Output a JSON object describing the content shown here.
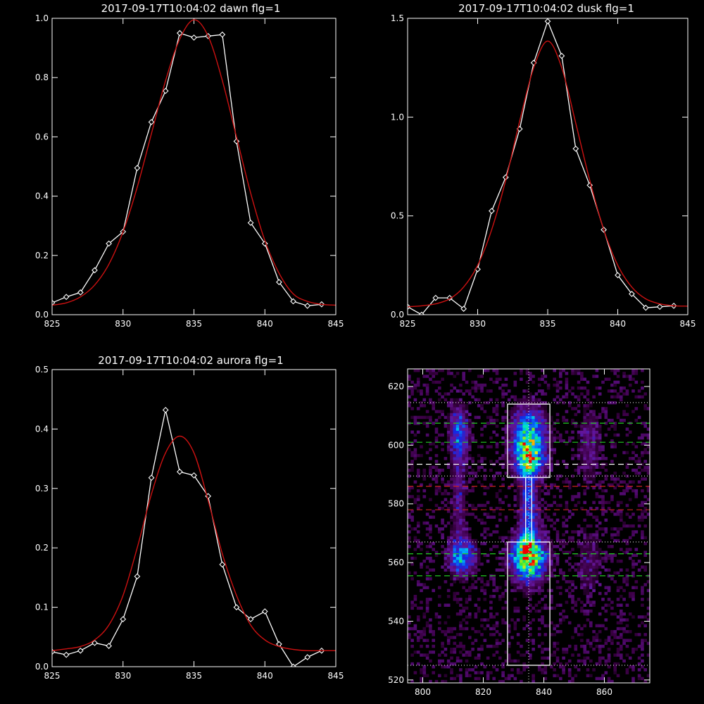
{
  "colors": {
    "background": "#000000",
    "axes": "#ffffff",
    "observed": "#ffffff",
    "fit": "#cc1111",
    "green_lines": "#22cc22",
    "red_lines": "#cc2222"
  },
  "chart_data": [
    {
      "id": "dawn",
      "type": "line",
      "title": "2017-09-17T10:04:02 dawn flg=1",
      "xlim": [
        825,
        845
      ],
      "ylim": [
        0,
        1.0
      ],
      "xticks": [
        825,
        830,
        835,
        840,
        845
      ],
      "yticks": [
        0.0,
        0.2,
        0.4,
        0.6,
        0.8,
        1.0
      ],
      "ytick_labels": [
        "0.0",
        "0.2",
        "0.4",
        "0.6",
        "0.8",
        "1.0"
      ],
      "series": [
        {
          "marker": "diamond",
          "x": [
            825,
            826,
            827,
            828,
            829,
            830,
            831,
            832,
            833,
            834,
            835,
            836,
            837,
            838,
            839,
            840,
            841,
            842,
            843,
            844
          ],
          "values": [
            0.04,
            0.06,
            0.075,
            0.15,
            0.24,
            0.28,
            0.495,
            0.65,
            0.755,
            0.95,
            0.935,
            0.94,
            0.945,
            0.585,
            0.31,
            0.24,
            0.11,
            0.045,
            0.03,
            0.035
          ]
        }
      ],
      "fit": {
        "x": [
          825,
          826,
          827,
          828,
          829,
          830,
          831,
          832,
          833,
          834,
          835,
          836,
          837,
          838,
          839,
          840,
          841,
          842,
          843,
          844,
          845
        ],
        "values": [
          0.032,
          0.04,
          0.06,
          0.1,
          0.17,
          0.28,
          0.43,
          0.61,
          0.79,
          0.93,
          0.995,
          0.94,
          0.79,
          0.6,
          0.41,
          0.25,
          0.14,
          0.07,
          0.045,
          0.035,
          0.032
        ]
      }
    },
    {
      "id": "dusk",
      "type": "line",
      "title": "2017-09-17T10:04:02 dusk flg=1",
      "xlim": [
        825,
        845
      ],
      "ylim": [
        0,
        1.5
      ],
      "xticks": [
        825,
        830,
        835,
        840,
        845
      ],
      "yticks": [
        0.0,
        0.5,
        1.0,
        1.5
      ],
      "ytick_labels": [
        "0.0",
        "0.5",
        "1.0",
        "1.5"
      ],
      "series": [
        {
          "marker": "diamond",
          "x": [
            825,
            826,
            827,
            828,
            829,
            830,
            831,
            832,
            833,
            834,
            835,
            836,
            837,
            838,
            839,
            840,
            841,
            842,
            843,
            844
          ],
          "values": [
            0.04,
            0.0,
            0.085,
            0.085,
            0.03,
            0.23,
            0.525,
            0.695,
            0.94,
            1.275,
            1.485,
            1.31,
            0.84,
            0.655,
            0.43,
            0.2,
            0.105,
            0.035,
            0.04,
            0.045
          ]
        }
      ],
      "fit": {
        "x": [
          825,
          826,
          827,
          828,
          829,
          830,
          831,
          832,
          833,
          834,
          835,
          836,
          837,
          838,
          839,
          840,
          841,
          842,
          843,
          844,
          845
        ],
        "values": [
          0.04,
          0.045,
          0.055,
          0.08,
          0.14,
          0.25,
          0.43,
          0.68,
          0.98,
          1.25,
          1.385,
          1.25,
          0.97,
          0.68,
          0.43,
          0.25,
          0.14,
          0.08,
          0.055,
          0.045,
          0.043
        ]
      }
    },
    {
      "id": "aurora",
      "type": "line",
      "title": "2017-09-17T10:04:02 aurora flg=1",
      "xlim": [
        825,
        845
      ],
      "ylim": [
        0,
        0.5
      ],
      "xticks": [
        825,
        830,
        835,
        840,
        845
      ],
      "yticks": [
        0.0,
        0.1,
        0.2,
        0.3,
        0.4,
        0.5
      ],
      "ytick_labels": [
        "0.0",
        "0.1",
        "0.2",
        "0.3",
        "0.4",
        "0.5"
      ],
      "series": [
        {
          "marker": "diamond",
          "x": [
            825,
            826,
            827,
            828,
            829,
            830,
            831,
            832,
            833,
            834,
            835,
            836,
            837,
            838,
            839,
            840,
            841,
            842,
            843,
            844
          ],
          "values": [
            0.025,
            0.02,
            0.027,
            0.04,
            0.035,
            0.08,
            0.152,
            0.318,
            0.432,
            0.328,
            0.322,
            0.287,
            0.172,
            0.1,
            0.08,
            0.093,
            0.038,
            0.0,
            0.016,
            0.027
          ]
        }
      ],
      "fit": {
        "x": [
          825,
          826,
          827,
          828,
          829,
          830,
          831,
          832,
          833,
          834,
          835,
          836,
          837,
          838,
          839,
          840,
          841,
          842,
          843,
          844,
          845
        ],
        "values": [
          0.027,
          0.03,
          0.034,
          0.045,
          0.07,
          0.12,
          0.2,
          0.29,
          0.36,
          0.388,
          0.36,
          0.28,
          0.19,
          0.12,
          0.07,
          0.045,
          0.034,
          0.029,
          0.027,
          0.027,
          0.027
        ]
      }
    },
    {
      "id": "image",
      "type": "heatmap",
      "title": "",
      "xlim": [
        795,
        875
      ],
      "ylim": [
        519,
        626
      ],
      "xticks": [
        800,
        820,
        840,
        860
      ],
      "yticks": [
        520,
        540,
        560,
        580,
        600,
        620
      ],
      "ytick_labels": [
        "520",
        "540",
        "560",
        "580",
        "600",
        "620"
      ],
      "hotspots": [
        {
          "x": 835,
          "y": 603,
          "sx": 3.5,
          "sy": 6,
          "amp": 0.6
        },
        {
          "x": 835,
          "y": 595,
          "sx": 3.2,
          "sy": 4,
          "amp": 0.5
        },
        {
          "x": 835,
          "y": 562,
          "sx": 3.5,
          "sy": 5,
          "amp": 0.9
        },
        {
          "x": 835,
          "y": 578,
          "sx": 1.8,
          "sy": 12,
          "amp": 0.35
        },
        {
          "x": 813,
          "y": 562,
          "sx": 2.8,
          "sy": 4,
          "amp": 0.45
        },
        {
          "x": 812,
          "y": 604,
          "sx": 2.0,
          "sy": 6,
          "amp": 0.32
        },
        {
          "x": 812,
          "y": 583,
          "sx": 1.6,
          "sy": 12,
          "amp": 0.16
        },
        {
          "x": 855,
          "y": 600,
          "sx": 2.5,
          "sy": 8,
          "amp": 0.14
        },
        {
          "x": 855,
          "y": 560,
          "sx": 3.0,
          "sy": 8,
          "amp": 0.1
        }
      ],
      "boxes": [
        {
          "x": [
            828,
            842
          ],
          "y": [
            589,
            614
          ]
        },
        {
          "x": [
            828,
            842
          ],
          "y": [
            525,
            567
          ]
        }
      ],
      "inner_box": {
        "x": [
          834,
          836
        ],
        "y": [
          567,
          589
        ]
      },
      "dotted_h": [
        614.5,
        589.5,
        567,
        525
      ],
      "dotted_v": 835,
      "green_dashed": [
        607.5,
        601,
        563,
        555.5
      ],
      "white_dashed": [
        593.5
      ],
      "red_dashed": [
        586,
        578
      ]
    }
  ]
}
